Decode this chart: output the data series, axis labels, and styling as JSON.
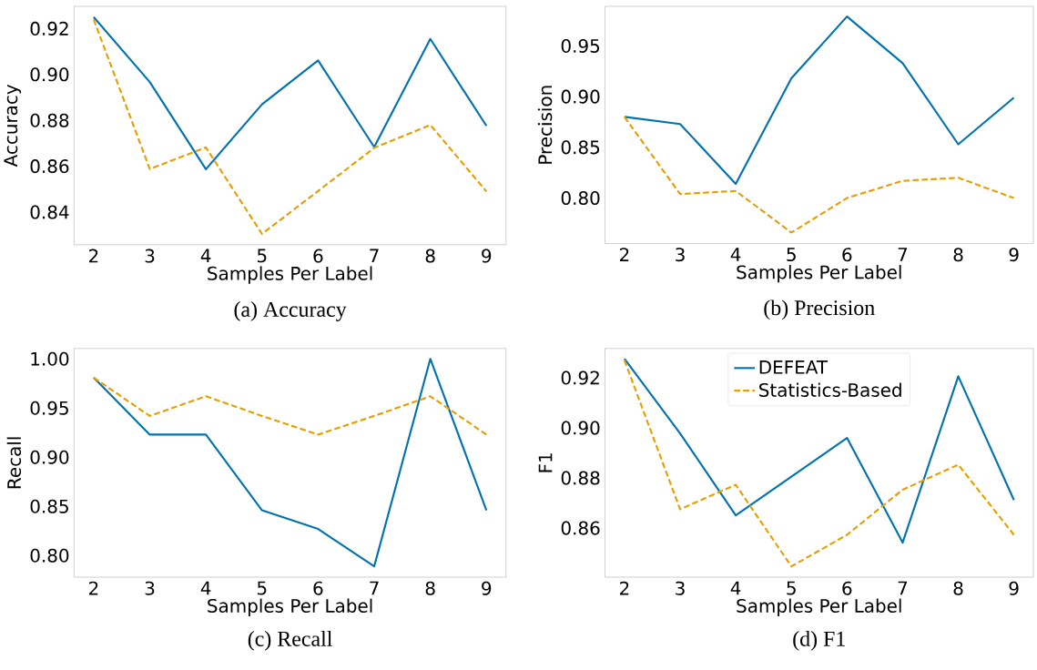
{
  "chart_data": [
    {
      "type": "line",
      "title": "(a) Accuracy",
      "xlabel": "Samples Per Label",
      "ylabel": "Accuracy",
      "x": [
        2,
        3,
        4,
        5,
        6,
        7,
        8,
        9
      ],
      "xlim": [
        1.65,
        9.35
      ],
      "xticks": [
        2,
        3,
        4,
        5,
        6,
        7,
        8,
        9
      ],
      "ylim": [
        0.8258,
        0.9297
      ],
      "yticks": [
        {
          "value": 0.84,
          "label": "0.84"
        },
        {
          "value": 0.86,
          "label": "0.86"
        },
        {
          "value": 0.88,
          "label": "0.88"
        },
        {
          "value": 0.9,
          "label": "0.90"
        },
        {
          "value": 0.92,
          "label": "0.92"
        }
      ],
      "series": [
        {
          "color": "#0072b2",
          "line_style": "solid",
          "values": [
            0.925,
            0.8967,
            0.8587,
            0.887,
            0.9061,
            0.8684,
            0.9155,
            0.8776
          ]
        },
        {
          "color": "#e69f00",
          "line_style": "dashed",
          "values": [
            0.924,
            0.8588,
            0.8682,
            0.8305,
            0.8492,
            0.868,
            0.878,
            0.849
          ]
        }
      ]
    },
    {
      "type": "line",
      "title": "(b) Precision",
      "xlabel": "Samples Per Label",
      "ylabel": "Precision",
      "x": [
        2,
        3,
        4,
        5,
        6,
        7,
        8,
        9
      ],
      "xlim": [
        1.65,
        9.35
      ],
      "xticks": [
        2,
        3,
        4,
        5,
        6,
        7,
        8,
        9
      ],
      "ylim": [
        0.7552,
        0.989
      ],
      "yticks": [
        {
          "value": 0.8,
          "label": "0.80"
        },
        {
          "value": 0.85,
          "label": "0.85"
        },
        {
          "value": 0.9,
          "label": "0.90"
        },
        {
          "value": 0.95,
          "label": "0.95"
        }
      ],
      "series": [
        {
          "color": "#0072b2",
          "line_style": "solid",
          "values": [
            0.88,
            0.873,
            0.814,
            0.918,
            0.979,
            0.933,
            0.853,
            0.899
          ]
        },
        {
          "color": "#e69f00",
          "line_style": "dashed",
          "values": [
            0.88,
            0.804,
            0.807,
            0.766,
            0.8,
            0.817,
            0.82,
            0.8
          ]
        }
      ]
    },
    {
      "type": "line",
      "title": "(c) Recall",
      "xlabel": "Samples Per Label",
      "ylabel": "Recall",
      "x": [
        2,
        3,
        4,
        5,
        6,
        7,
        8,
        9
      ],
      "xlim": [
        1.65,
        9.35
      ],
      "xticks": [
        2,
        3,
        4,
        5,
        6,
        7,
        8,
        9
      ],
      "ylim": [
        0.778,
        1.0106
      ],
      "yticks": [
        {
          "value": 0.8,
          "label": "0.80"
        },
        {
          "value": 0.85,
          "label": "0.85"
        },
        {
          "value": 0.9,
          "label": "0.90"
        },
        {
          "value": 0.95,
          "label": "0.95"
        },
        {
          "value": 1.0,
          "label": "1.00"
        }
      ],
      "series": [
        {
          "color": "#0072b2",
          "line_style": "solid",
          "values": [
            0.981,
            0.923,
            0.923,
            0.846,
            0.827,
            0.789,
            1.0,
            0.846
          ]
        },
        {
          "color": "#e69f00",
          "line_style": "dashed",
          "values": [
            0.981,
            0.942,
            0.962,
            0.942,
            0.923,
            0.942,
            0.962,
            0.923
          ]
        }
      ]
    },
    {
      "type": "line",
      "title": "(d) F1",
      "xlabel": "Samples Per Label",
      "ylabel": "F1",
      "x": [
        2,
        3,
        4,
        5,
        6,
        7,
        8,
        9
      ],
      "xlim": [
        1.65,
        9.35
      ],
      "xticks": [
        2,
        3,
        4,
        5,
        6,
        7,
        8,
        9
      ],
      "ylim": [
        0.8404,
        0.9317
      ],
      "yticks": [
        {
          "value": 0.86,
          "label": "0.86"
        },
        {
          "value": 0.88,
          "label": "0.88"
        },
        {
          "value": 0.9,
          "label": "0.90"
        },
        {
          "value": 0.92,
          "label": "0.92"
        }
      ],
      "legend": "top",
      "series": [
        {
          "name": "DEFEAT",
          "color": "#0072b2",
          "line_style": "solid",
          "values": [
            0.9276,
            0.8978,
            0.8651,
            0.8805,
            0.896,
            0.8542,
            0.9206,
            0.8712
          ]
        },
        {
          "name": "Statistics-Based",
          "color": "#e69f00",
          "line_style": "dashed",
          "values": [
            0.927,
            0.8675,
            0.8773,
            0.8447,
            0.8573,
            0.8753,
            0.8853,
            0.8573
          ]
        }
      ]
    }
  ]
}
